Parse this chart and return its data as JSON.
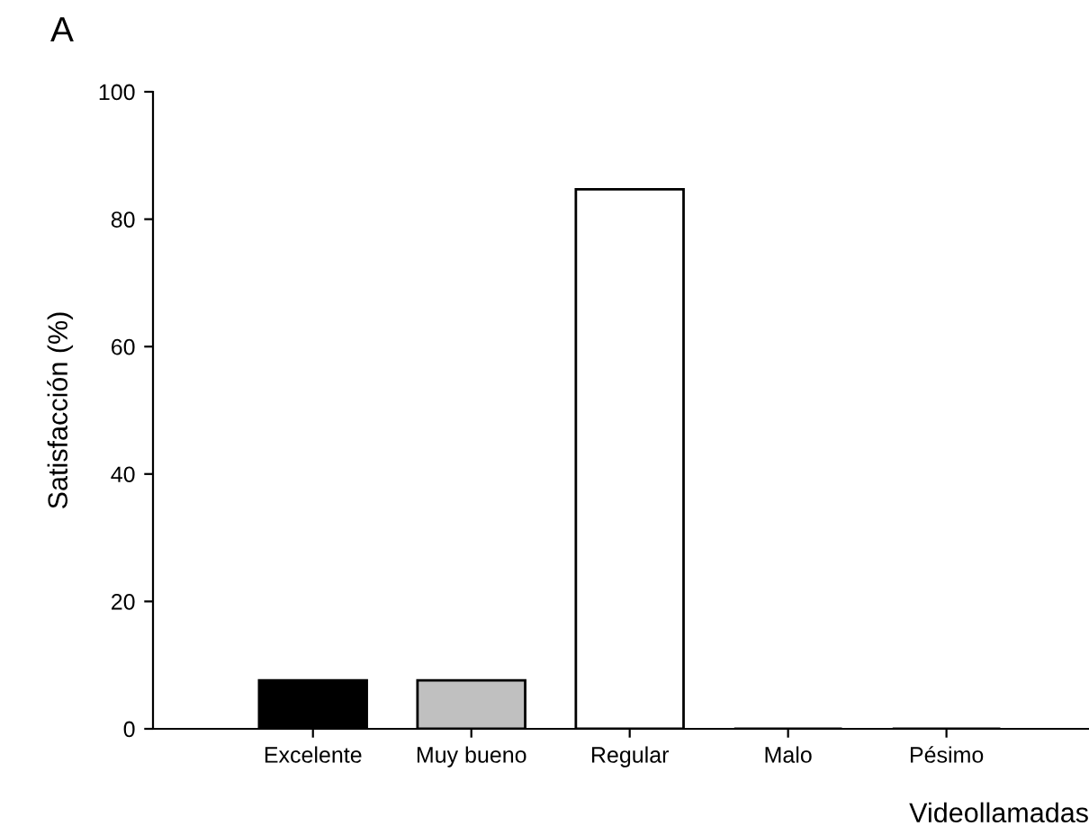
{
  "chart_data": {
    "type": "bar",
    "title": "A",
    "xlabel": "Videollamadas",
    "ylabel": "Satisfacción (%)",
    "categories": [
      "Excelente",
      "Muy bueno",
      "Regular",
      "Malo",
      "Pésimo"
    ],
    "values": [
      7.6,
      7.6,
      84.7,
      0,
      0
    ],
    "colors": [
      "#000000",
      "#c0c0c0",
      "#ffffff",
      "#ffffff",
      "#ffffff"
    ],
    "ylim": [
      0,
      100
    ],
    "yticks": [
      0,
      20,
      40,
      60,
      80,
      100
    ],
    "grid": false,
    "legend": false
  }
}
